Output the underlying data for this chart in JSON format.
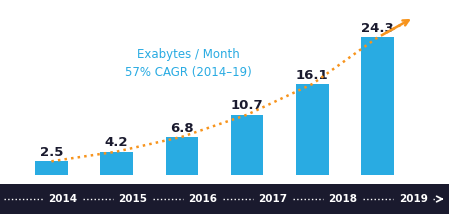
{
  "years": [
    "2014",
    "2015",
    "2016",
    "2017",
    "2018",
    "2019"
  ],
  "values": [
    2.5,
    4.2,
    6.8,
    10.7,
    16.1,
    24.3
  ],
  "bar_color": "#29ABE2",
  "bar_width": 0.5,
  "annotation_color": "#1a1a2e",
  "label_fontsize": 9.5,
  "annotation_text": "Exabytes / Month\n57% CAGR (2014–19)",
  "annotation_color_blue": "#29ABE2",
  "dotted_line_color": "#F7941D",
  "background_color": "#ffffff",
  "timeline_bg": "#1a1a2e",
  "ylim": [
    0,
    29
  ]
}
